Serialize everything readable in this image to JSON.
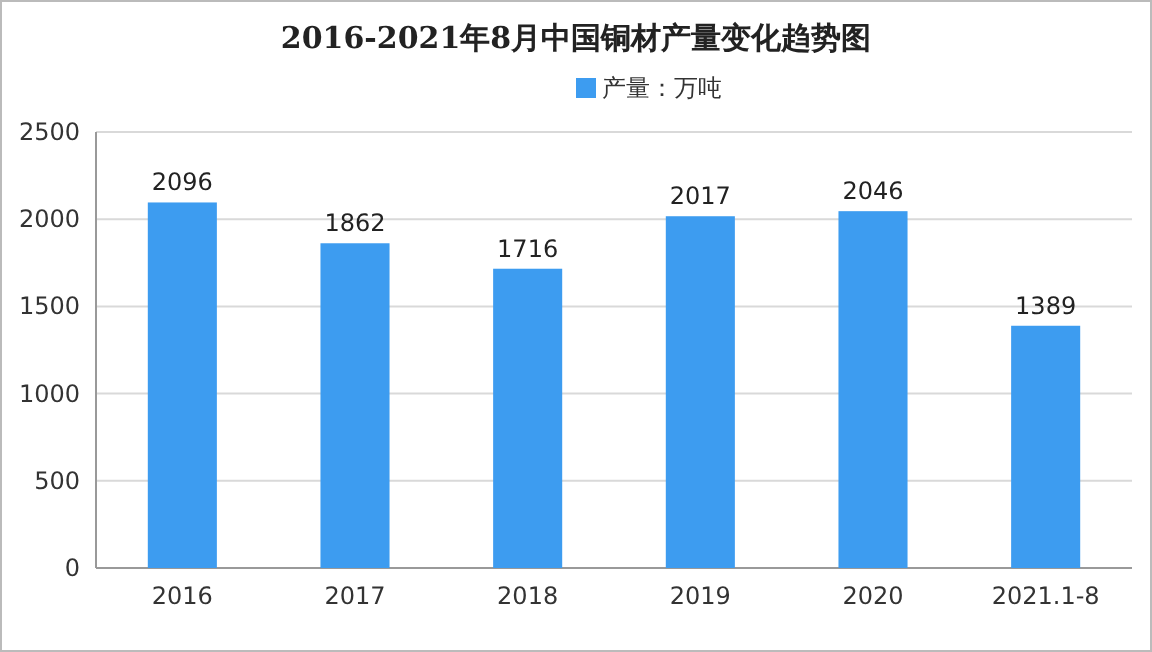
{
  "chart_data": {
    "type": "bar",
    "title": "2016-2021年8月中国铜材产量变化趋势图",
    "categories": [
      "2016",
      "2017",
      "2018",
      "2019",
      "2020",
      "2021.1-8"
    ],
    "series": [
      {
        "name": "产量：万吨",
        "color": "#3d9cf0",
        "values": [
          2096,
          1862,
          1716,
          2017,
          2046,
          1389
        ]
      }
    ],
    "ylim": [
      0,
      2500
    ],
    "yticks": [
      0,
      500,
      1000,
      1500,
      2000,
      2500
    ],
    "grid": "y",
    "legend": "top",
    "data_labels": true
  }
}
